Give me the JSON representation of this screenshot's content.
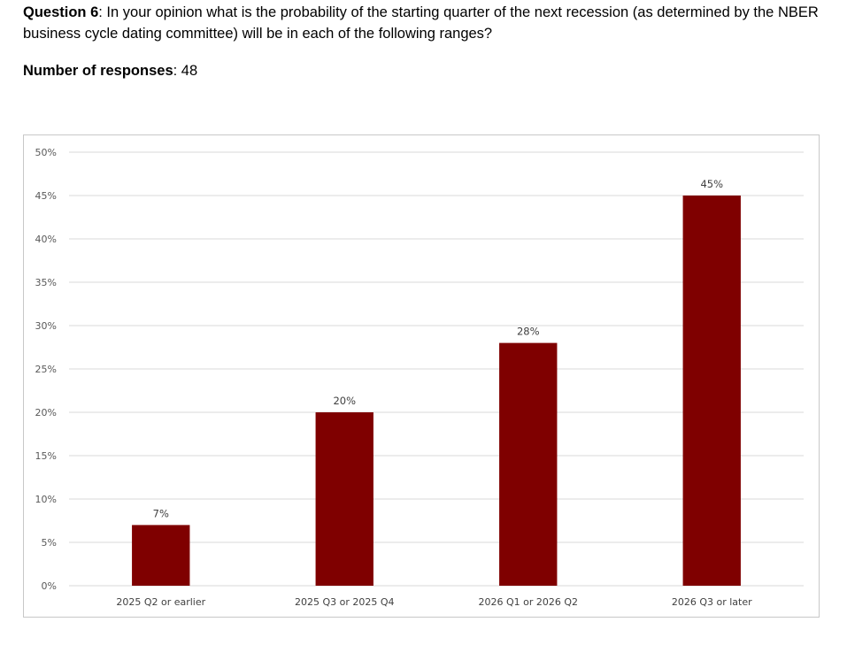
{
  "question": {
    "label": "Question 6",
    "text": ": In your opinion what is the probability of the starting quarter of the next recession (as determined by the NBER business cycle dating committee) will be in each of the following ranges?"
  },
  "responses": {
    "label": "Number of responses",
    "value": ": 48"
  },
  "colors": {
    "bar": "#7f0000",
    "grid": "#d9d9d9",
    "tick_text": "#595959",
    "frame_border": "#c8c8c8"
  },
  "chart_data": {
    "type": "bar",
    "title": "",
    "xlabel": "",
    "ylabel": "",
    "categories": [
      "2025 Q2 or earlier",
      "2025 Q3 or 2025 Q4",
      "2026 Q1 or 2026 Q2",
      "2026 Q3 or later"
    ],
    "values": [
      7,
      20,
      28,
      45
    ],
    "data_labels": [
      "7%",
      "20%",
      "28%",
      "45%"
    ],
    "ylim": [
      0,
      50
    ],
    "yticks": [
      0,
      5,
      10,
      15,
      20,
      25,
      30,
      35,
      40,
      45,
      50
    ],
    "ytick_labels": [
      "0%",
      "5%",
      "10%",
      "15%",
      "20%",
      "25%",
      "30%",
      "35%",
      "40%",
      "45%",
      "50%"
    ],
    "grid": true,
    "legend": "none"
  }
}
